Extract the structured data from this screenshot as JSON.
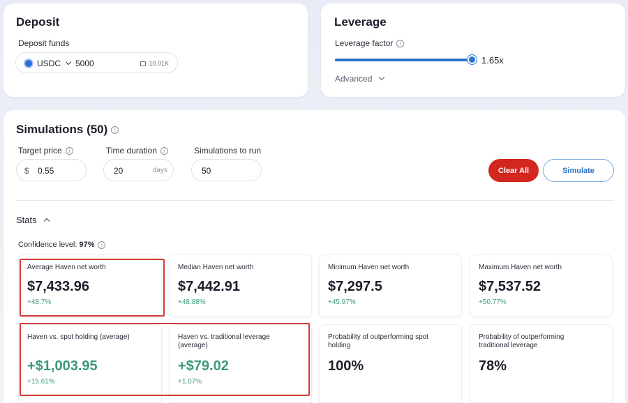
{
  "deposit": {
    "title": "Deposit",
    "funds_label": "Deposit funds",
    "token": "USDC",
    "amount": "5000",
    "balance": "10.01K"
  },
  "leverage": {
    "title": "Leverage",
    "factor_label": "Leverage factor",
    "value": "1.65x",
    "slider_fraction": 0.98,
    "advanced_label": "Advanced"
  },
  "simulations": {
    "title": "Simulations (50)",
    "target_price": {
      "label": "Target price",
      "prefix": "$",
      "value": "0.55"
    },
    "time_duration": {
      "label": "Time duration",
      "value": "20",
      "unit": "days"
    },
    "sims_to_run": {
      "label": "Simulations to run",
      "value": "50"
    },
    "clear_label": "Clear All",
    "simulate_label": "Simulate"
  },
  "stats": {
    "title": "Stats",
    "confidence_label": "Confidence level:",
    "confidence_value": "97%",
    "cards": [
      {
        "label": "Average Haven net worth",
        "value": "$7,433.96",
        "delta": "+48.7%"
      },
      {
        "label": "Median Haven net worth",
        "value": "$7,442.91",
        "delta": "+48.88%"
      },
      {
        "label": "Minimum Haven net worth",
        "value": "$7,297.5",
        "delta": "+45.97%"
      },
      {
        "label": "Maximum Haven net worth",
        "value": "$7,537.52",
        "delta": "+50.77%"
      },
      {
        "label": "Haven vs. spot holding (average)",
        "value": "+$1,003.95",
        "delta": "+15.61%"
      },
      {
        "label": "Haven vs. traditional leverage (average)",
        "value": "+$79.02",
        "delta": "+1.07%"
      },
      {
        "label": "Probability of outperforming spot holding",
        "value": "100%"
      },
      {
        "label": "Probability of outperforming traditional leverage",
        "value": "78%"
      }
    ]
  },
  "colors": {
    "accent": "#2a73c9",
    "danger": "#d3261e",
    "positive": "#3d9a76",
    "highlight": "#d43a3a"
  }
}
